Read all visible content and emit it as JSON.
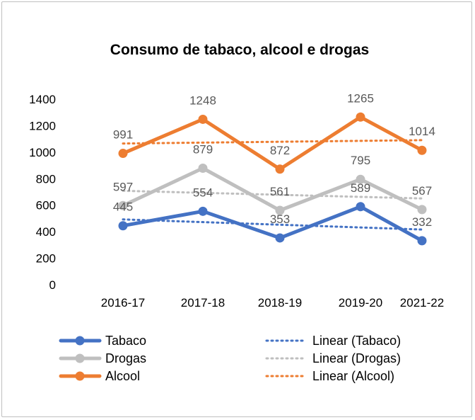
{
  "chart_data": {
    "type": "line",
    "title": "Consumo de tabaco, alcool e drogas",
    "categories": [
      "2016-17",
      "2017-18",
      "2018-19",
      "2019-20",
      "2021-22"
    ],
    "ylim": [
      0,
      1400
    ],
    "yticks": [
      0,
      200,
      400,
      600,
      800,
      1000,
      1200,
      1400
    ],
    "ytick_labels": [
      "0",
      "200",
      "400",
      "600",
      "800",
      "1000",
      "1200",
      "1400"
    ],
    "grid": false,
    "legend_position": "bottom",
    "series": [
      {
        "name": "Tabaco",
        "values": [
          445,
          554,
          353,
          589,
          332
        ],
        "labels": [
          "445",
          "554",
          "353",
          "589",
          "332"
        ],
        "color": "#4472C4",
        "trend_name": "Linear (Tabaco)"
      },
      {
        "name": "Drogas",
        "values": [
          597,
          879,
          561,
          795,
          567
        ],
        "labels": [
          "597",
          "879",
          "561",
          "795",
          "567"
        ],
        "color": "#BFBFBF",
        "trend_name": "Linear (Drogas)"
      },
      {
        "name": "Alcool",
        "values": [
          991,
          1248,
          872,
          1265,
          1014
        ],
        "labels": [
          "991",
          "1248",
          "872",
          "1265",
          "1014"
        ],
        "color": "#ED7D31",
        "trend_name": "Linear (Alcool)"
      }
    ]
  }
}
